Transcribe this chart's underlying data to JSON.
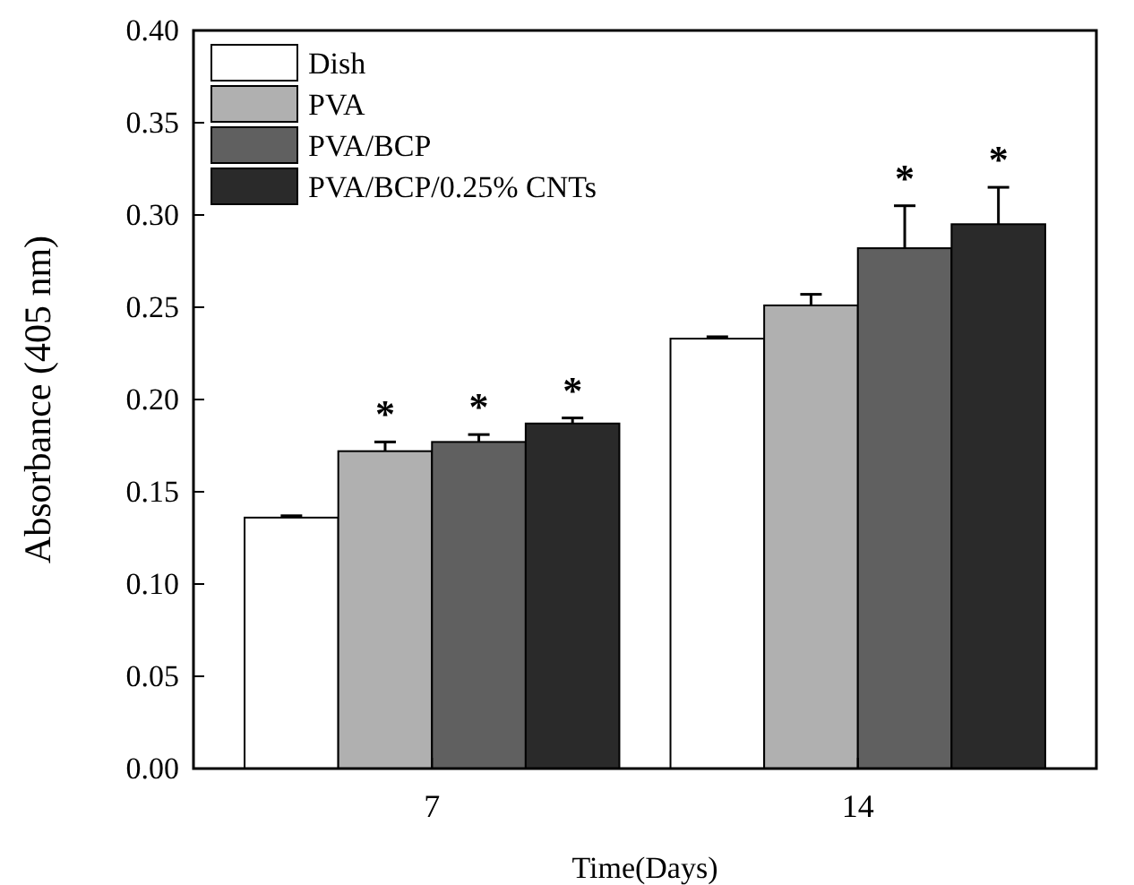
{
  "chart_data": {
    "type": "bar",
    "xlabel": "Time(Days)",
    "ylabel": "Absorbance (405 nm)",
    "categories": [
      "7",
      "14"
    ],
    "series": [
      {
        "name": "Dish",
        "color": "#ffffff",
        "values": [
          0.136,
          0.233
        ],
        "errors": [
          [
            0.136,
            0.137
          ],
          [
            0.233,
            0.234
          ]
        ]
      },
      {
        "name": "PVA",
        "color": "#b0b0b0",
        "values": [
          0.172,
          0.251
        ],
        "errors": [
          [
            0.172,
            0.177
          ],
          [
            0.251,
            0.257
          ]
        ]
      },
      {
        "name": "PVA/BCP",
        "color": "#606060",
        "values": [
          0.177,
          0.282
        ],
        "errors": [
          [
            0.177,
            0.181
          ],
          [
            0.282,
            0.305
          ]
        ]
      },
      {
        "name": "PVA/BCP/0.25% CNTs",
        "color": "#2a2a2a",
        "values": [
          0.187,
          0.295
        ],
        "errors": [
          [
            0.187,
            0.19
          ],
          [
            0.295,
            0.315
          ]
        ]
      }
    ],
    "annotations": [
      "*",
      "*",
      "*",
      "*",
      "*"
    ],
    "ylim": [
      0,
      0.4
    ],
    "yticks": [
      {
        "value": 0,
        "label": "0.00"
      },
      {
        "value": 0.05,
        "label": "0.05"
      },
      {
        "value": 0.1,
        "label": "0.10"
      },
      {
        "value": 0.15,
        "label": "0.15"
      },
      {
        "value": 0.2,
        "label": "0.20"
      },
      {
        "value": 0.25,
        "label": "0.25"
      },
      {
        "value": 0.3,
        "label": "0.30"
      },
      {
        "value": 0.35,
        "label": "0.35"
      },
      {
        "value": 0.4,
        "label": "0.40"
      }
    ],
    "legend": "top left",
    "grid": false
  }
}
